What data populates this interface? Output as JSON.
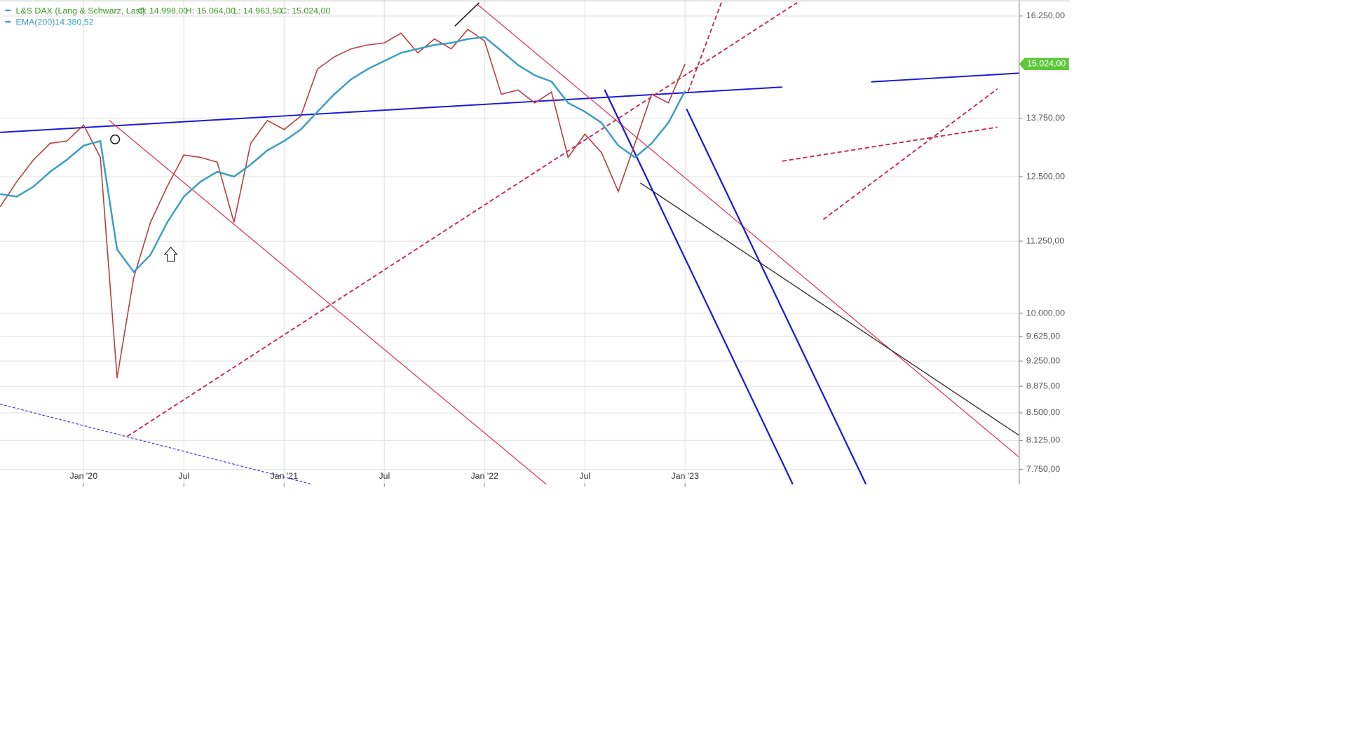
{
  "chart_data": {
    "type": "line",
    "log_scale": true,
    "grid": true,
    "instrument": "L&S DAX (Lang & Schwarz, Last)",
    "ohlc": [
      "O: 14.998,00",
      "H: 15.064,00",
      "L: 14.963,50",
      "C: 15.024,00"
    ],
    "indicator": {
      "name": "EMA(200)",
      "value_label": "14.380,52"
    },
    "last_price": {
      "value": 15024,
      "label": "15.024,00"
    },
    "x": [
      "2019-08",
      "2019-09",
      "2019-10",
      "2019-11",
      "2019-12",
      "2020-01",
      "2020-02",
      "2020-03",
      "2020-04",
      "2020-05",
      "2020-06",
      "2020-07",
      "2020-08",
      "2020-09",
      "2020-10",
      "2020-11",
      "2020-12",
      "2021-01",
      "2021-02",
      "2021-03",
      "2021-04",
      "2021-05",
      "2021-06",
      "2021-07",
      "2021-08",
      "2021-09",
      "2021-10",
      "2021-11",
      "2021-12",
      "2022-01",
      "2022-02",
      "2022-03",
      "2022-04",
      "2022-05",
      "2022-06",
      "2022-07",
      "2022-08",
      "2022-09",
      "2022-10",
      "2022-11",
      "2022-12",
      "2023-01"
    ],
    "series": [
      {
        "name": "L&S DAX",
        "color": "#b8413f",
        "values": [
          11900,
          12400,
          12850,
          13200,
          13250,
          13600,
          12900,
          9000,
          10600,
          11600,
          12300,
          12950,
          12900,
          12800,
          11600,
          13200,
          13700,
          13500,
          13800,
          14900,
          15200,
          15400,
          15500,
          15550,
          15800,
          15300,
          15650,
          15400,
          15900,
          15600,
          14300,
          14400,
          14100,
          14350,
          12900,
          13400,
          13000,
          12200,
          13200,
          14300,
          14100,
          15024
        ]
      },
      {
        "name": "EMA(200)",
        "color": "#3a9fc6",
        "values": [
          12150,
          12100,
          12300,
          12600,
          12850,
          13150,
          13250,
          11100,
          10700,
          11000,
          11600,
          12100,
          12400,
          12600,
          12500,
          12750,
          13050,
          13250,
          13500,
          13900,
          14300,
          14650,
          14900,
          15100,
          15300,
          15400,
          15500,
          15550,
          15650,
          15700,
          15350,
          15000,
          14750,
          14600,
          14100,
          13900,
          13650,
          13150,
          12900,
          13200,
          13650,
          14380
        ]
      }
    ],
    "xlim": [
      "2019-08",
      "2024-09"
    ],
    "xticks": [
      {
        "value": "2020-01",
        "label": "Jan '20"
      },
      {
        "value": "2020-07",
        "label": "Jul"
      },
      {
        "value": "2021-01",
        "label": "Jan '21"
      },
      {
        "value": "2021-07",
        "label": "Jul"
      },
      {
        "value": "2022-01",
        "label": "Jan '22"
      },
      {
        "value": "2022-07",
        "label": "Jul"
      },
      {
        "value": "2023-01",
        "label": "Jan '23"
      }
    ],
    "ylim": [
      7575,
      16680
    ],
    "yticks": [
      {
        "value": 16250,
        "label": "16.250,00"
      },
      {
        "value": 13750,
        "label": "13.750,00"
      },
      {
        "value": 12500,
        "label": "12.500,00"
      },
      {
        "value": 11250,
        "label": "11.250,00"
      },
      {
        "value": 10000,
        "label": "10.000,00"
      },
      {
        "value": 9625,
        "label": "9.625,00"
      },
      {
        "value": 9250,
        "label": "9.250,00"
      },
      {
        "value": 8875,
        "label": "8.875,00"
      },
      {
        "value": 8500,
        "label": "8.500,00"
      },
      {
        "value": 8125,
        "label": "8.125,00"
      },
      {
        "value": 7750,
        "label": "7.750,00"
      }
    ]
  }
}
